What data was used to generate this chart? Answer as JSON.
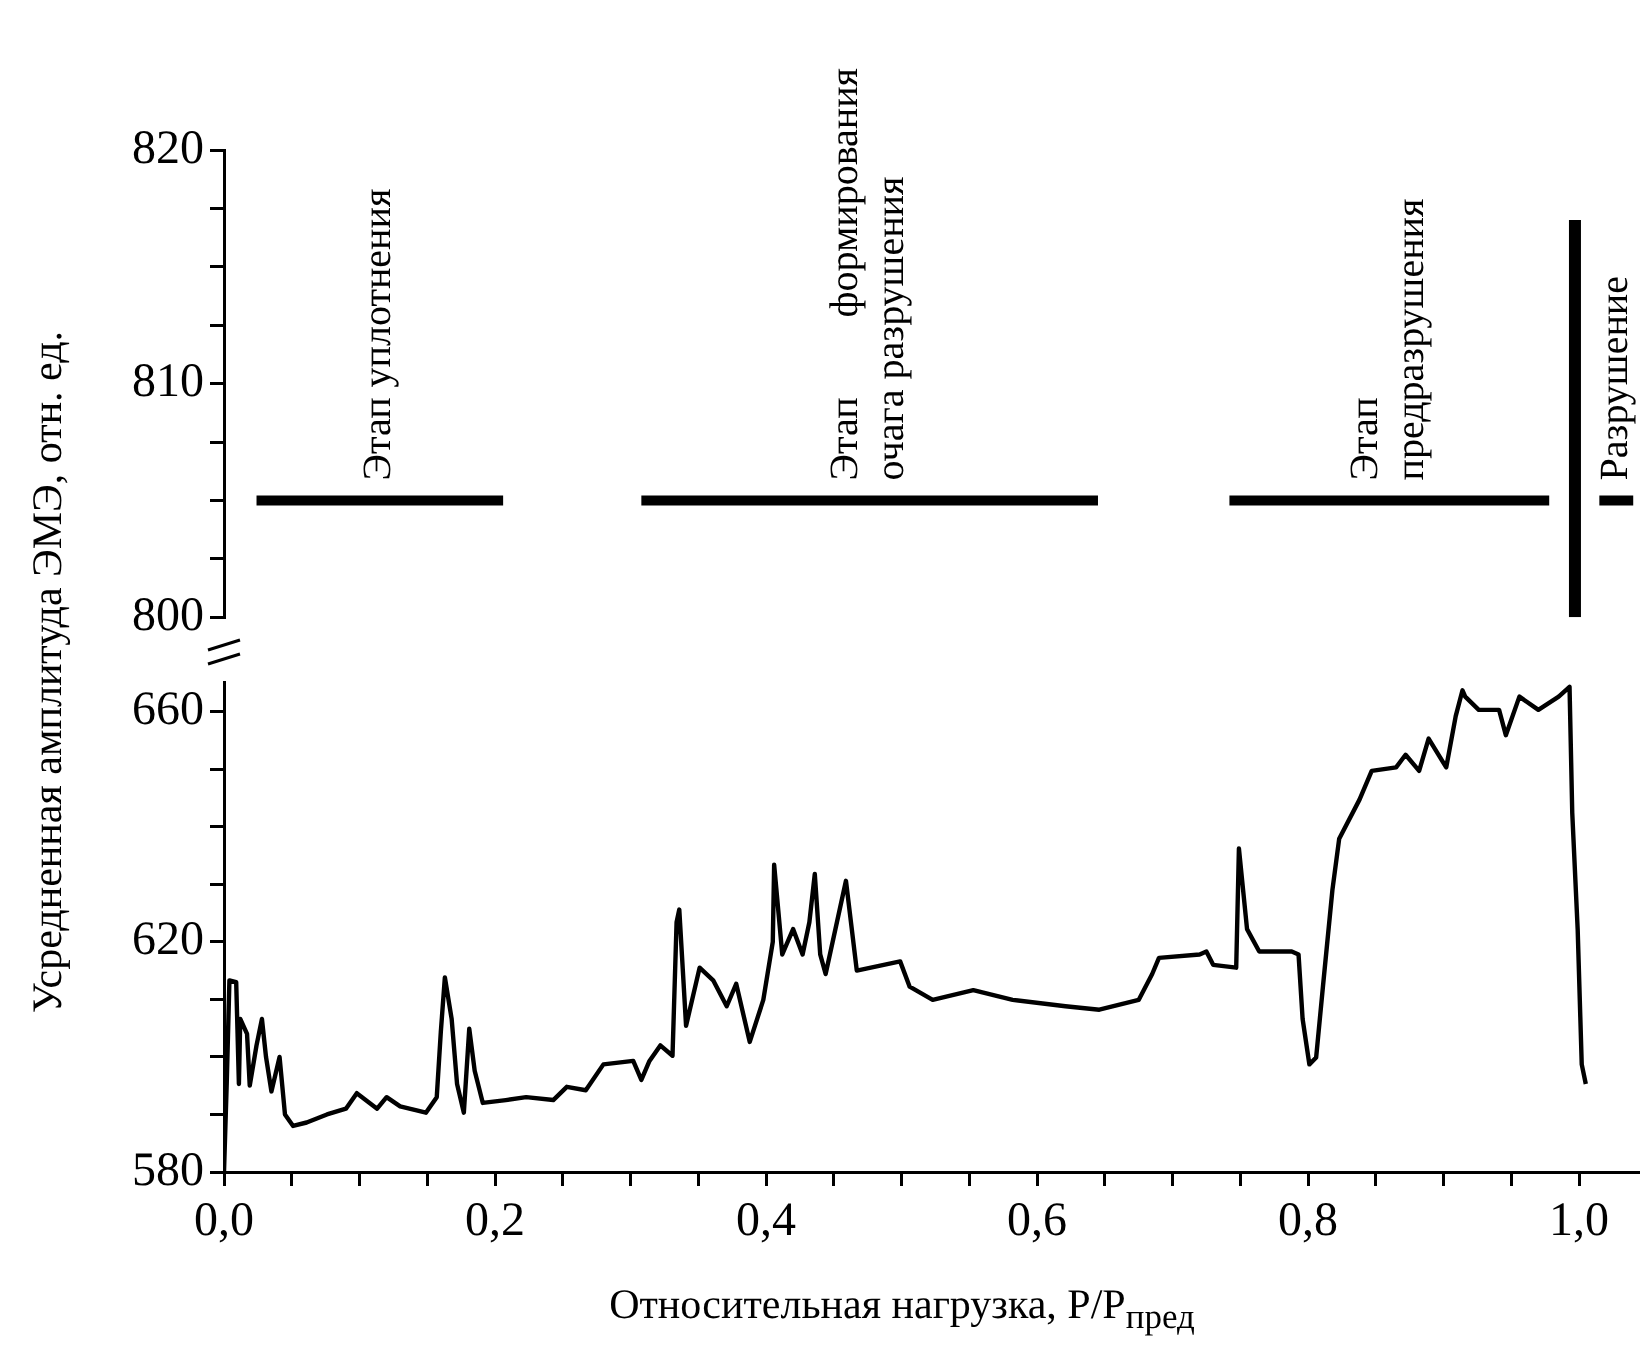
{
  "chart_data": [
    {
      "type": "line",
      "xlim": [
        0,
        1.045
      ],
      "ylim": [
        800,
        820
      ],
      "yticks": [
        800,
        {
          "value": 802.5,
          "label": null
        },
        {
          "value": 805,
          "label": null
        },
        {
          "value": 807.5,
          "label": null
        },
        810,
        {
          "value": 812.5,
          "label": null
        },
        {
          "value": 815,
          "label": null
        },
        {
          "value": 817.5,
          "label": null
        },
        820
      ],
      "tick_labels": "y",
      "series": [
        {
          "name": "Этап уплотнения",
          "color": "#000000",
          "x": [
            0.024,
            0.206
          ],
          "values": [
            805,
            805
          ]
        },
        {
          "name": "Этап        формирования\nочага разрушения",
          "color": "#000000",
          "x": [
            0.308,
            0.645
          ],
          "values": [
            805,
            805
          ]
        },
        {
          "name": "Этап\nпредразрушения",
          "color": "#000000",
          "x": [
            0.742,
            0.978
          ],
          "values": [
            805,
            805
          ]
        },
        {
          "name": "Разрушение",
          "color": "#000000",
          "x": [
            1.015,
            1.04
          ],
          "values": [
            805,
            805
          ]
        },
        {
          "color": "#000000",
          "x": [
            0.997,
            0.997
          ],
          "values": [
            800,
            817
          ]
        }
      ]
    },
    {
      "type": "line",
      "xlabel": "Относительная нагрузка, P/P$_{пред}$",
      "ylabel": "Усредненная амплитуда ЭМЭ, отн. ед.",
      "xlim": [
        0,
        1.045
      ],
      "ylim": [
        580,
        665
      ],
      "xticks": [
        {
          "value": 0,
          "label": "0,0"
        },
        {
          "value": 0.05,
          "label": null
        },
        {
          "value": 0.1,
          "label": null
        },
        {
          "value": 0.15,
          "label": null
        },
        {
          "value": 0.2,
          "label": "0,2"
        },
        {
          "value": 0.25,
          "label": null
        },
        {
          "value": 0.3,
          "label": null
        },
        {
          "value": 0.35,
          "label": null
        },
        {
          "value": 0.4,
          "label": "0,4"
        },
        {
          "value": 0.45,
          "label": null
        },
        {
          "value": 0.5,
          "label": null
        },
        {
          "value": 0.55,
          "label": null
        },
        {
          "value": 0.6,
          "label": "0,6"
        },
        {
          "value": 0.65,
          "label": null
        },
        {
          "value": 0.7,
          "label": null
        },
        {
          "value": 0.75,
          "label": null
        },
        {
          "value": 0.8,
          "label": "0,8"
        },
        {
          "value": 0.85,
          "label": null
        },
        {
          "value": 0.9,
          "label": null
        },
        {
          "value": 0.95,
          "label": null
        },
        {
          "value": 1.0,
          "label": "1,0"
        }
      ],
      "yticks": [
        580,
        {
          "value": 590,
          "label": null
        },
        {
          "value": 600,
          "label": null
        },
        {
          "value": 610,
          "label": null
        },
        620,
        {
          "value": 630,
          "label": null
        },
        {
          "value": 640,
          "label": null
        },
        {
          "value": 650,
          "label": null
        },
        660
      ],
      "series": [
        {
          "color": "#000000",
          "x": [
            0,
            0.002,
            0.004,
            0.009,
            0.011,
            0.012,
            0.017,
            0.019,
            0.024,
            0.028,
            0.031,
            0.035,
            0.041,
            0.045,
            0.051,
            0.061,
            0.076,
            0.09,
            0.098,
            0.113,
            0.12,
            0.13,
            0.149,
            0.157,
            0.16,
            0.163,
            0.168,
            0.172,
            0.177,
            0.181,
            0.185,
            0.191,
            0.208,
            0.223,
            0.243,
            0.253,
            0.267,
            0.28,
            0.302,
            0.308,
            0.314,
            0.322,
            0.331,
            0.334,
            0.336,
            0.341,
            0.351,
            0.361,
            0.371,
            0.378,
            0.388,
            0.398,
            0.405,
            0.406,
            0.412,
            0.42,
            0.427,
            0.432,
            0.436,
            0.44,
            0.444,
            0.459,
            0.467,
            0.499,
            0.506,
            0.523,
            0.553,
            0.582,
            0.621,
            0.646,
            0.675,
            0.685,
            0.69,
            0.72,
            0.725,
            0.73,
            0.747,
            0.749,
            0.755,
            0.764,
            0.774,
            0.788,
            0.793,
            0.796,
            0.801,
            0.806,
            0.811,
            0.818,
            0.823,
            0.838,
            0.847,
            0.865,
            0.872,
            0.882,
            0.889,
            0.902,
            0.909,
            0.914,
            0.916,
            0.926,
            0.941,
            0.946,
            0.956,
            0.97,
            0.985,
            0.993,
            0.995,
            0.999,
            1.002,
            1.005
          ],
          "values": [
            580,
            595.3,
            613.3,
            613,
            595.3,
            606.6,
            604,
            595,
            602,
            606.6,
            600,
            594,
            600,
            590,
            588,
            588.6,
            590,
            591,
            593.7,
            591,
            593,
            591.4,
            590.3,
            593,
            604.3,
            613.8,
            606.6,
            595.3,
            590.3,
            604.9,
            597.6,
            592,
            592.5,
            593,
            592.5,
            594.8,
            594.2,
            598.7,
            599.3,
            596,
            599.3,
            602,
            600.2,
            623.4,
            625.6,
            605.4,
            615.5,
            613.3,
            608.8,
            612.7,
            602.6,
            609.9,
            620,
            633.4,
            617.8,
            622.2,
            617.8,
            623.4,
            631.8,
            617.8,
            614.4,
            630.6,
            615,
            616.6,
            612.2,
            609.9,
            611.6,
            609.9,
            608.8,
            608.2,
            609.9,
            614.4,
            617.2,
            617.8,
            618.3,
            616,
            615.5,
            636.2,
            622.2,
            618.3,
            618.3,
            618.3,
            617.8,
            606.6,
            598.7,
            599.9,
            612.2,
            629,
            637.9,
            644.7,
            649.7,
            650.3,
            652.5,
            649.7,
            655.3,
            650.3,
            659.2,
            663.7,
            662.6,
            660.3,
            660.3,
            655.9,
            662.6,
            660.3,
            662.6,
            664.3,
            642.4,
            622.2,
            598.7,
            595.3
          ]
        }
      ]
    }
  ]
}
